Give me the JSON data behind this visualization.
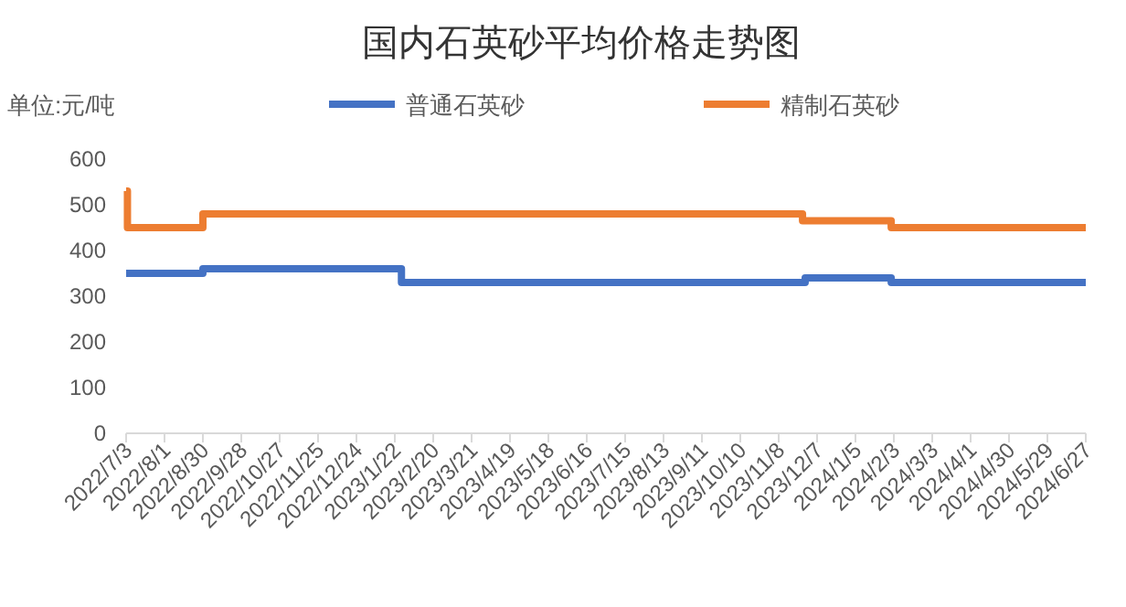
{
  "chart_data": {
    "type": "step",
    "title": "国内石英砂平均价格走势图",
    "ylabel": "单位:元/吨",
    "legend": "top",
    "grid": false,
    "xlim": [
      "2022-07-03",
      "2024-06-27"
    ],
    "ylim": [
      0,
      600
    ],
    "yticks": [
      0,
      100,
      200,
      300,
      400,
      500,
      600
    ],
    "xticks": [
      {
        "value": "2022-07-03",
        "label": "2022/7/3"
      },
      {
        "value": "2022-08-01",
        "label": "2022/8/1"
      },
      {
        "value": "2022-08-30",
        "label": "2022/8/30"
      },
      {
        "value": "2022-09-28",
        "label": "2022/9/28"
      },
      {
        "value": "2022-10-27",
        "label": "2022/10/27"
      },
      {
        "value": "2022-11-25",
        "label": "2022/11/25"
      },
      {
        "value": "2022-12-24",
        "label": "2022/12/24"
      },
      {
        "value": "2023-01-22",
        "label": "2023/1/22"
      },
      {
        "value": "2023-02-20",
        "label": "2023/2/20"
      },
      {
        "value": "2023-03-21",
        "label": "2023/3/21"
      },
      {
        "value": "2023-04-19",
        "label": "2023/4/19"
      },
      {
        "value": "2023-05-18",
        "label": "2023/5/18"
      },
      {
        "value": "2023-06-16",
        "label": "2023/6/16"
      },
      {
        "value": "2023-07-15",
        "label": "2023/7/15"
      },
      {
        "value": "2023-08-13",
        "label": "2023/8/13"
      },
      {
        "value": "2023-09-11",
        "label": "2023/9/11"
      },
      {
        "value": "2023-10-10",
        "label": "2023/10/10"
      },
      {
        "value": "2023-11-08",
        "label": "2023/11/8"
      },
      {
        "value": "2023-12-07",
        "label": "2023/12/7"
      },
      {
        "value": "2024-01-05",
        "label": "2024/1/5"
      },
      {
        "value": "2024-02-03",
        "label": "2024/2/3"
      },
      {
        "value": "2024-03-03",
        "label": "2024/3/3"
      },
      {
        "value": "2024-04-01",
        "label": "2024/4/1"
      },
      {
        "value": "2024-04-30",
        "label": "2024/4/30"
      },
      {
        "value": "2024-05-29",
        "label": "2024/5/29"
      },
      {
        "value": "2024-06-27",
        "label": "2024/6/27"
      }
    ],
    "series": [
      {
        "name": "普通石英砂",
        "color": "#4472c4",
        "x": [
          "2022-07-03",
          "2022-08-30",
          "2023-01-27",
          "2023-11-28",
          "2024-02-01",
          "2024-06-27"
        ],
        "values": [
          350,
          360,
          330,
          340,
          330,
          330
        ]
      },
      {
        "name": "精制石英砂",
        "color": "#ed7d31",
        "x": [
          "2022-07-03",
          "2022-07-04",
          "2022-08-30",
          "2023-11-26",
          "2024-02-01",
          "2024-06-27"
        ],
        "values": [
          530,
          450,
          480,
          465,
          450,
          450
        ]
      }
    ]
  }
}
